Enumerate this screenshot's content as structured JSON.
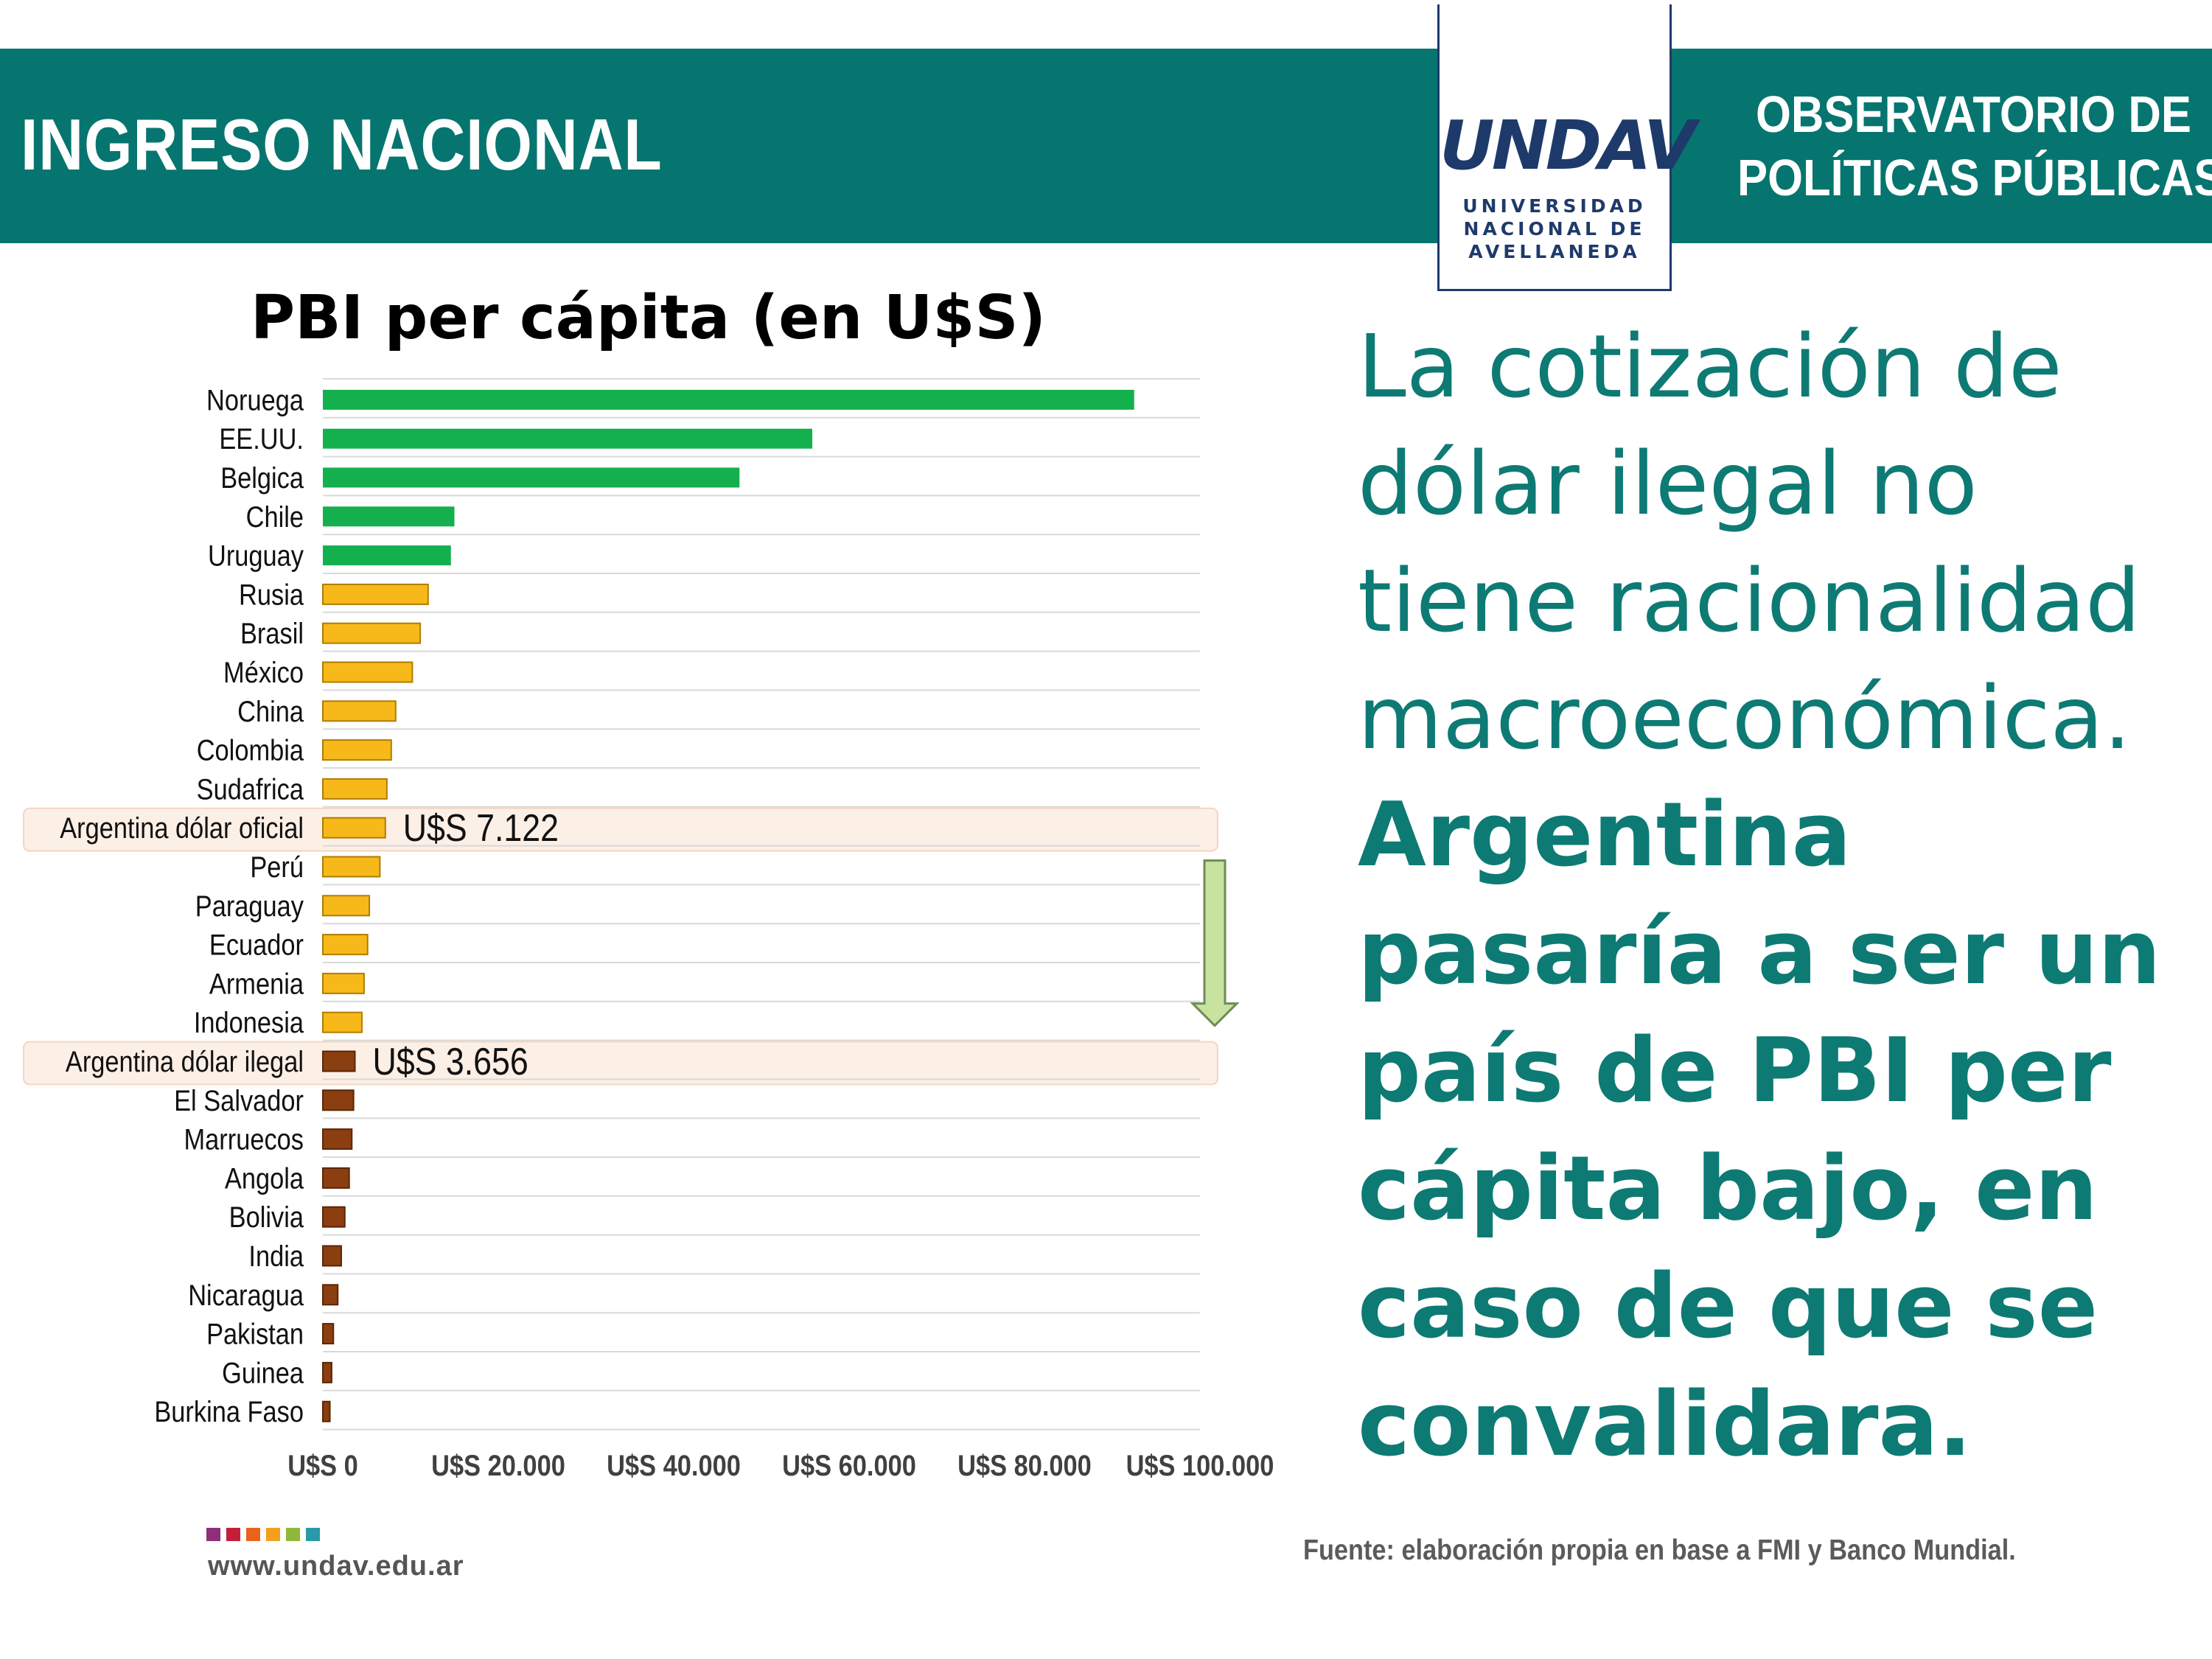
{
  "header": {
    "title": "INGRESO NACIONAL",
    "right_line1": "OBSERVATORIO DE",
    "right_line2": "POLÍTICAS PÚBLICAS"
  },
  "logo": {
    "mark": "UNDAV",
    "line1": "UNIVERSIDAD",
    "line2": "NACIONAL DE",
    "line3": "AVELLANEDA"
  },
  "headline": {
    "normal": "La cotización de dólar ilegal no tiene racionalidad macroeconómica.",
    "bold": "Argentina pasaría a ser un país de PBI per cápita bajo, en caso de que se convalidara."
  },
  "footer": {
    "website": "www.undav.edu.ar",
    "source": "Fuente: elaboración propia en base a FMI y Banco Mundial.",
    "dot_colors": [
      "#8e2f7a",
      "#c41f3a",
      "#e8641e",
      "#f3a11c",
      "#8fb83a",
      "#2a9aa8"
    ]
  },
  "colors": {
    "header_bg": "#07756f",
    "headline": "#0e7a74",
    "high": "#14b04e",
    "mid": "#f7b81a",
    "low": "#8b3e10",
    "highlight": "#fcefe6",
    "arrow": "#c8e3a0"
  },
  "chart_data": {
    "type": "bar",
    "orientation": "horizontal",
    "title": "PBI per cápita (en U$S)",
    "xlim": [
      0,
      100000
    ],
    "x_tick_labels": [
      "U$S 0",
      "U$S 20.000",
      "U$S 40.000",
      "U$S 60.000",
      "U$S 80.000",
      "U$S 100.000"
    ],
    "categories": [
      "Noruega",
      "EE.UU.",
      "Belgica",
      "Chile",
      "Uruguay",
      "Rusia",
      "Brasil",
      "México",
      "China",
      "Colombia",
      "Sudafrica",
      "Argentina dólar oficial",
      "Perú",
      "Paraguay",
      "Ecuador",
      "Armenia",
      "Indonesia",
      "Argentina dólar ilegal",
      "El Salvador",
      "Marruecos",
      "Angola",
      "Bolivia",
      "India",
      "Nicaragua",
      "Pakistan",
      "Guinea",
      "Burkina Faso"
    ],
    "values": [
      92500,
      55800,
      47500,
      15000,
      14600,
      12000,
      11100,
      10200,
      8300,
      7800,
      7300,
      7122,
      6500,
      5300,
      5100,
      4700,
      4450,
      3656,
      3500,
      3300,
      3000,
      2500,
      2100,
      1700,
      1200,
      1000,
      800
    ],
    "groups": [
      "high",
      "high",
      "high",
      "high",
      "high",
      "mid",
      "mid",
      "mid",
      "mid",
      "mid",
      "mid",
      "mid",
      "mid",
      "mid",
      "mid",
      "mid",
      "mid",
      "low",
      "low",
      "low",
      "low",
      "low",
      "low",
      "low",
      "low",
      "low",
      "low"
    ],
    "highlighted": [
      "Argentina dólar oficial",
      "Argentina dólar ilegal"
    ],
    "annotations": [
      {
        "category": "Argentina dólar oficial",
        "text": "U$S 7.122"
      },
      {
        "category": "Argentina dólar ilegal",
        "text": "U$S 3.656"
      }
    ],
    "grid": true,
    "legend": "none"
  }
}
